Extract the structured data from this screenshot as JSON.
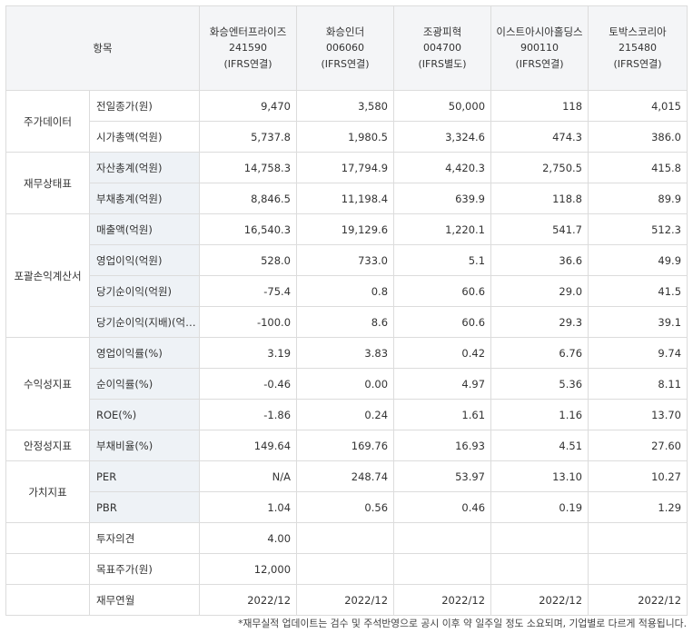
{
  "header": {
    "label": "항목",
    "companies": [
      {
        "name": "화승엔터프라이즈",
        "code": "241590",
        "type": "(IFRS연결)"
      },
      {
        "name": "화승인더",
        "code": "006060",
        "type": "(IFRS연결)"
      },
      {
        "name": "조광피혁",
        "code": "004700",
        "type": "(IFRS별도)"
      },
      {
        "name": "이스트아시아홀딩스",
        "code": "900110",
        "type": "(IFRS연결)"
      },
      {
        "name": "토박스코리아",
        "code": "215480",
        "type": "(IFRS연결)"
      }
    ]
  },
  "groups": {
    "stock": "주가데이터",
    "balance": "재무상태표",
    "income": "포괄손익계산서",
    "profit": "수익성지표",
    "stability": "안정성지표",
    "value": "가치지표"
  },
  "rows": [
    {
      "label": "전일종가(원)",
      "values": [
        "9,470",
        "3,580",
        "50,000",
        "118",
        "4,015"
      ]
    },
    {
      "label": "시가총액(억원)",
      "values": [
        "5,737.8",
        "1,980.5",
        "3,324.6",
        "474.3",
        "386.0"
      ]
    },
    {
      "label": "자산총계(억원)",
      "values": [
        "14,758.3",
        "17,794.9",
        "4,420.3",
        "2,750.5",
        "415.8"
      ]
    },
    {
      "label": "부채총계(억원)",
      "values": [
        "8,846.5",
        "11,198.4",
        "639.9",
        "118.8",
        "89.9"
      ]
    },
    {
      "label": "매출액(억원)",
      "values": [
        "16,540.3",
        "19,129.6",
        "1,220.1",
        "541.7",
        "512.3"
      ]
    },
    {
      "label": "영업이익(억원)",
      "values": [
        "528.0",
        "733.0",
        "5.1",
        "36.6",
        "49.9"
      ]
    },
    {
      "label": "당기순이익(억원)",
      "values": [
        "-75.4",
        "0.8",
        "60.6",
        "29.0",
        "41.5"
      ]
    },
    {
      "label": "당기순이익(지배)(억원)",
      "values": [
        "-100.0",
        "8.6",
        "60.6",
        "29.3",
        "39.1"
      ]
    },
    {
      "label": "영업이익률(%)",
      "values": [
        "3.19",
        "3.83",
        "0.42",
        "6.76",
        "9.74"
      ]
    },
    {
      "label": "순이익률(%)",
      "values": [
        "-0.46",
        "0.00",
        "4.97",
        "5.36",
        "8.11"
      ]
    },
    {
      "label": "ROE(%)",
      "values": [
        "-1.86",
        "0.24",
        "1.61",
        "1.16",
        "13.70"
      ]
    },
    {
      "label": "부채비율(%)",
      "values": [
        "149.64",
        "169.76",
        "16.93",
        "4.51",
        "27.60"
      ]
    },
    {
      "label": "PER",
      "values": [
        "N/A",
        "248.74",
        "53.97",
        "13.10",
        "10.27"
      ]
    },
    {
      "label": "PBR",
      "values": [
        "1.04",
        "0.56",
        "0.46",
        "0.19",
        "1.29"
      ]
    }
  ],
  "extra": {
    "opinion_label": "투자의견",
    "opinion_value": "4.00",
    "target_label": "목표주가(원)",
    "target_value": "12,000",
    "fiscal_label": "재무연월",
    "fiscal_values": [
      "2022/12",
      "2022/12",
      "2022/12",
      "2022/12",
      "2022/12"
    ]
  },
  "note": "*재무실적 업데이트는 검수 및 주석반영으로 공시 이후 약 일주일 정도 소요되며, 기업별로 다르게 적용됩니다."
}
